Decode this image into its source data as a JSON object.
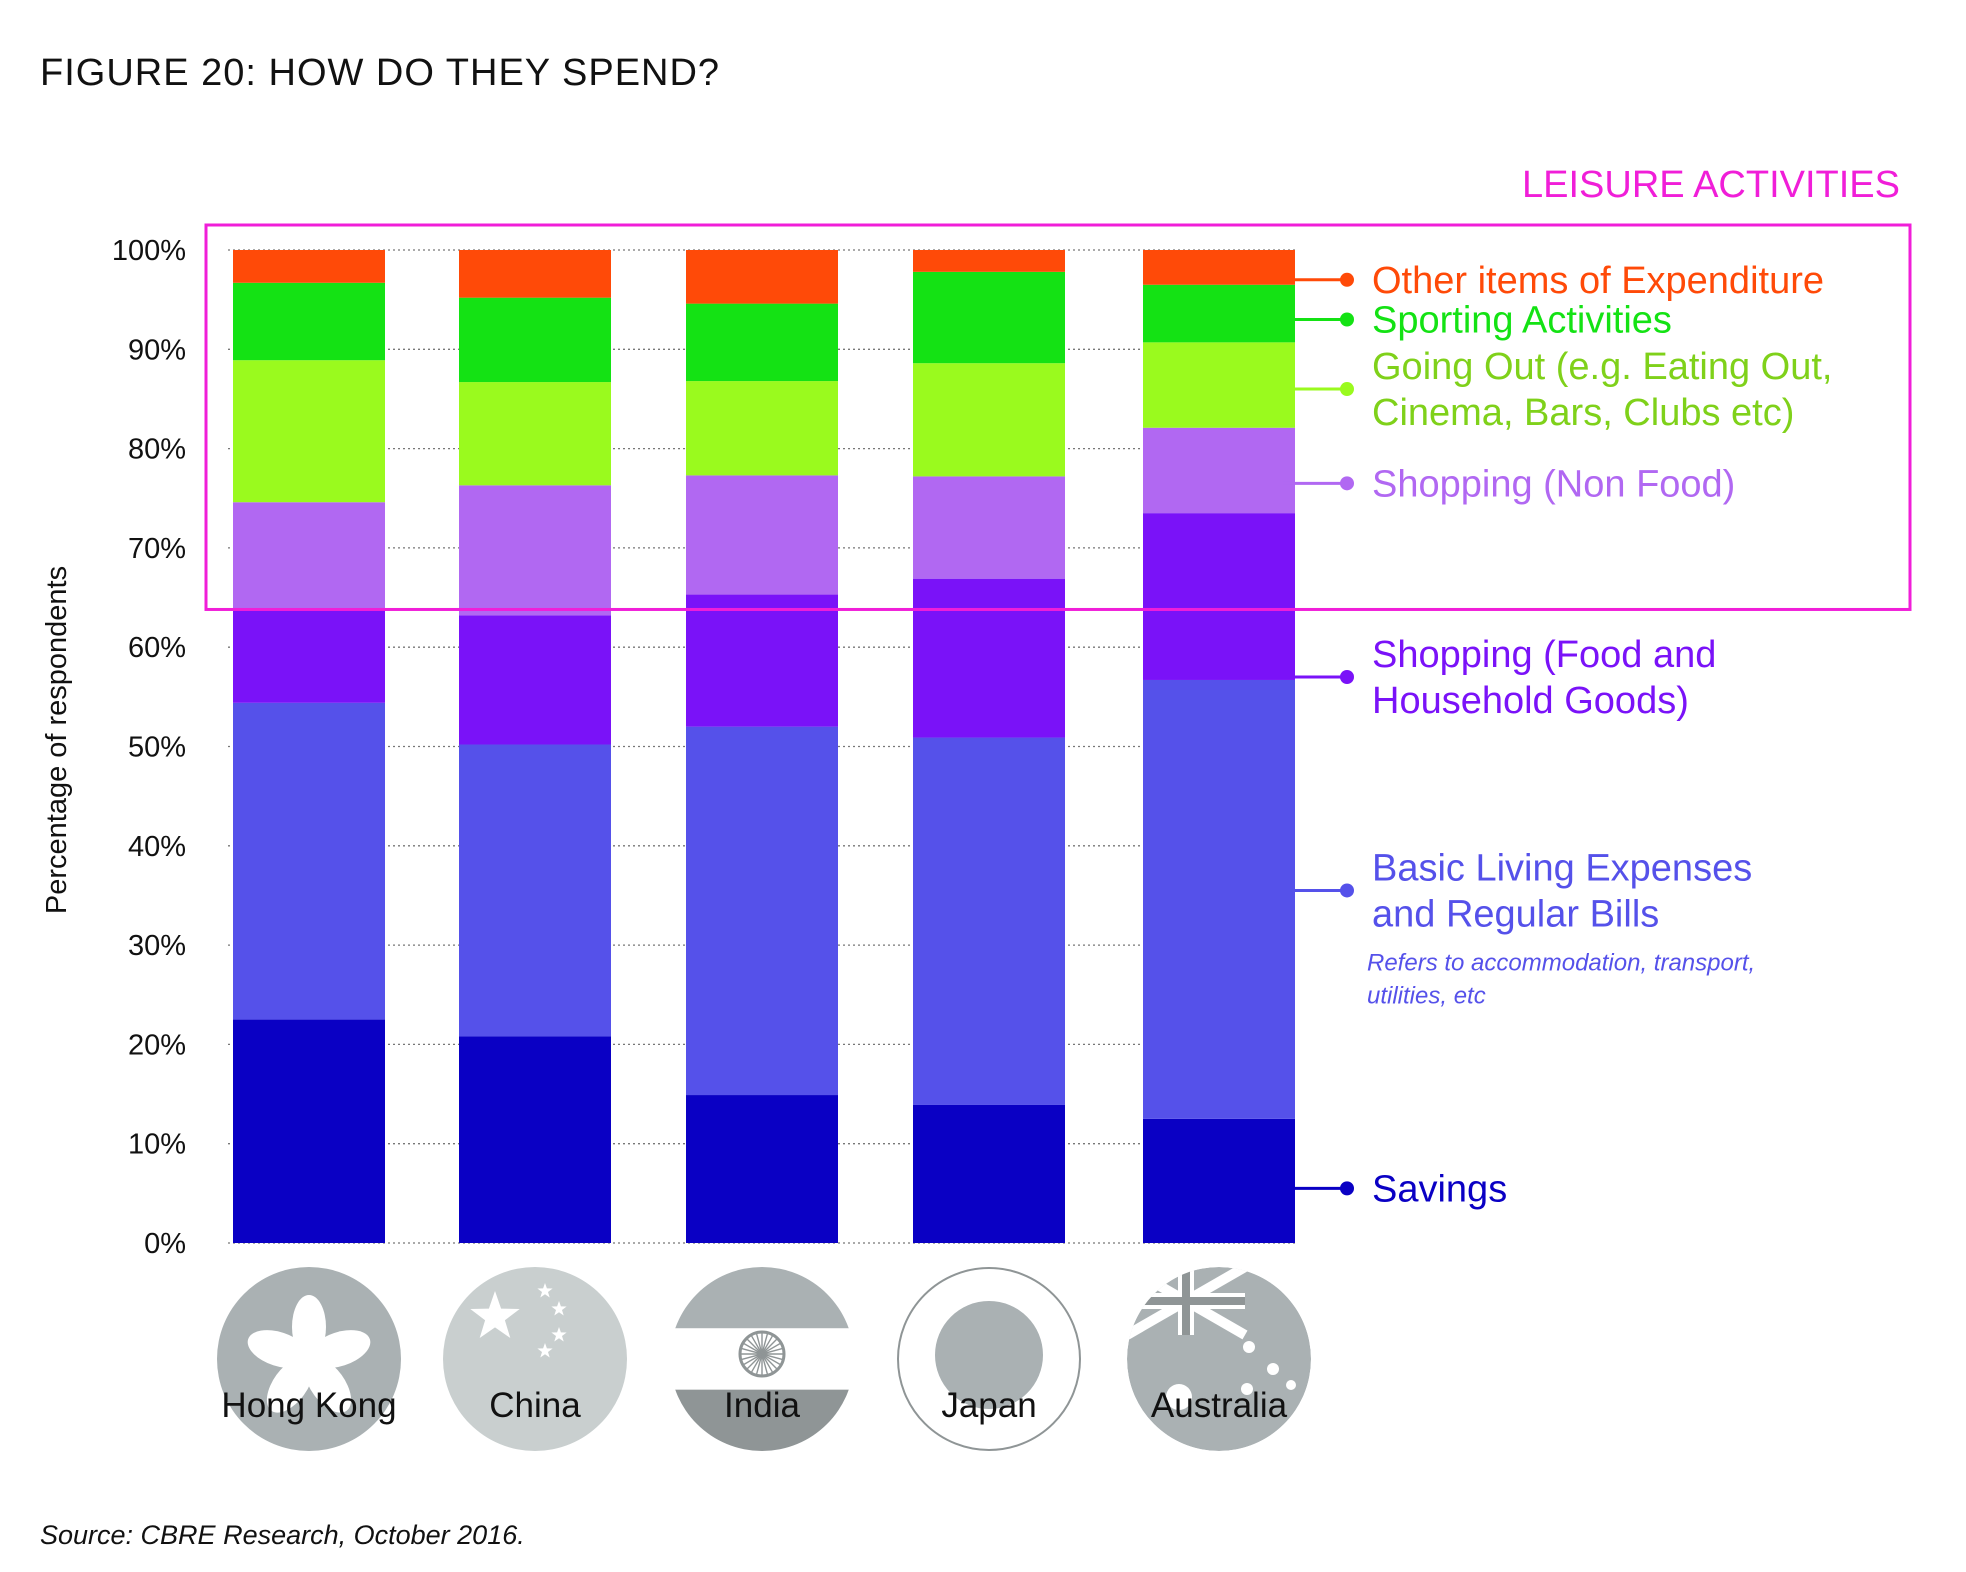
{
  "title": "FIGURE 20: HOW DO THEY SPEND?",
  "source": "Source: CBRE Research, October 2016.",
  "colors": {
    "highlight": "#F01ED8",
    "flag_grey": "#AAB1B3",
    "flag_dark": "#8F9596"
  },
  "chart_data": {
    "type": "bar",
    "stacked": true,
    "ylabel": "Percentage of respondents",
    "ylim": [
      0,
      100
    ],
    "yticks": [
      "0%",
      "10%",
      "20%",
      "30%",
      "40%",
      "50%",
      "60%",
      "70%",
      "80%",
      "90%",
      "100%"
    ],
    "grid": "dotted horizontal",
    "categories": [
      "Hong Kong",
      "China",
      "India",
      "Japan",
      "Australia"
    ],
    "series": [
      {
        "name": "Savings",
        "color": "#0A00C4",
        "values": [
          22.5,
          20.8,
          14.9,
          13.9,
          12.5
        ]
      },
      {
        "name": "Basic Living Expenses and Regular Bills",
        "color": "#5551EA",
        "values": [
          31.9,
          29.4,
          37.1,
          37.0,
          44.2
        ]
      },
      {
        "name": "Shopping (Food and Household Goods)",
        "color": "#7A12F8",
        "values": [
          9.5,
          13.0,
          13.3,
          16.0,
          16.8
        ]
      },
      {
        "name": "Shopping (Non Food)",
        "color": "#B168F2",
        "values": [
          10.7,
          13.1,
          12.0,
          10.3,
          8.6
        ]
      },
      {
        "name": "Going Out (e.g. Eating Out, Cinema, Bars, Clubs etc)",
        "color": "#9AFA1E",
        "values": [
          14.3,
          10.4,
          9.5,
          11.4,
          8.6
        ]
      },
      {
        "name": "Sporting Activities",
        "color": "#14E214",
        "values": [
          7.8,
          8.5,
          7.8,
          9.2,
          5.8
        ]
      },
      {
        "name": "Other items of Expenditure",
        "color": "#FF4A08",
        "values": [
          3.3,
          4.8,
          5.4,
          2.2,
          3.5
        ]
      }
    ],
    "leisure_box": {
      "label": "LEISURE ACTIVITIES",
      "from": 63.8,
      "to": 100
    },
    "legend": [
      {
        "lines": [
          "Other items of Expenditure"
        ],
        "color": "#FF4A08",
        "text_color": "#FF4A08",
        "at": 97.0
      },
      {
        "lines": [
          "Sporting Activities"
        ],
        "color": "#14E214",
        "text_color": "#14E214",
        "at": 93.0
      },
      {
        "lines": [
          "Going Out (e.g. Eating Out,",
          "Cinema, Bars, Clubs etc)"
        ],
        "color": "#9AFA1E",
        "text_color": "#7FD11A",
        "at": 86.0
      },
      {
        "lines": [
          "Shopping (Non Food)"
        ],
        "color": "#B168F2",
        "text_color": "#B168F2",
        "at": 76.5
      },
      {
        "lines": [
          "Shopping (Food and",
          "Household Goods)"
        ],
        "color": "#7A12F8",
        "text_color": "#7A12F8",
        "at": 57.0
      },
      {
        "lines": [
          "Basic Living Expenses",
          "and Regular Bills"
        ],
        "color": "#5551EA",
        "text_color": "#5551EA",
        "at": 35.5,
        "note": [
          "Refers to accommodation, transport,",
          "utilities, etc"
        ]
      },
      {
        "lines": [
          "Savings"
        ],
        "color": "#0A00C4",
        "text_color": "#0A00C4",
        "at": 5.5
      }
    ]
  }
}
